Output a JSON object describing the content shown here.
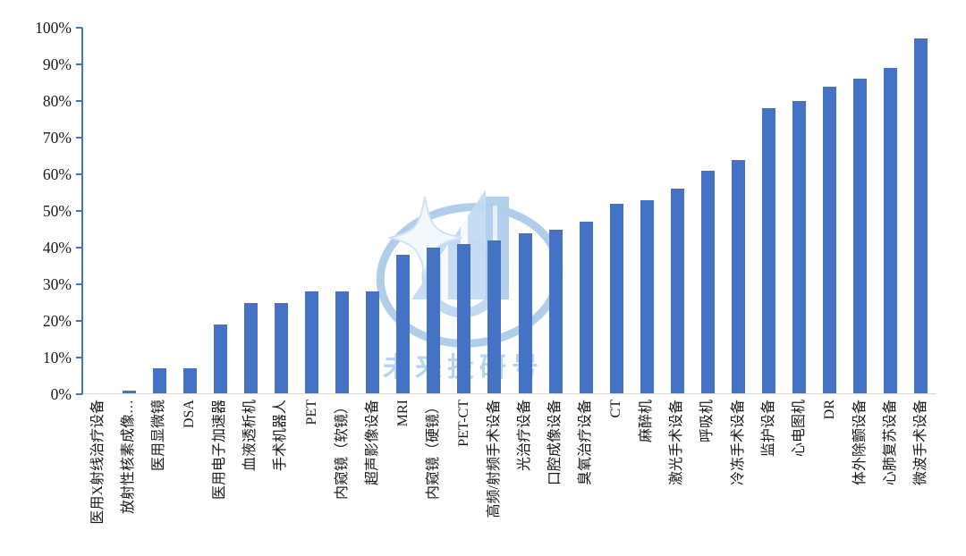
{
  "chart_data": {
    "type": "bar",
    "title": "",
    "xlabel": "",
    "ylabel": "",
    "categories": [
      "医用X射线治疗设备",
      "放射性核素成像…",
      "医用显微镜",
      "DSA",
      "医用电子加速器",
      "血液透析机",
      "手术机器人",
      "PET",
      "内窥镜（软镜）",
      "超声影像设备",
      "MRI",
      "内窥镜（硬镜）",
      "PET-CT",
      "高频/射频手术设备",
      "光治疗设备",
      "口腔成像设备",
      "臭氧治疗设备",
      "CT",
      "麻醉机",
      "激光手术设备",
      "呼吸机",
      "冷冻手术设备",
      "监护设备",
      "心电图机",
      "DR",
      "体外除颤设备",
      "心肺复苏设备",
      "微波手术设备"
    ],
    "values": [
      0,
      1,
      7,
      7,
      19,
      25,
      25,
      28,
      28,
      28,
      38,
      40,
      41,
      42,
      44,
      45,
      47,
      52,
      53,
      56,
      61,
      64,
      78,
      80,
      84,
      86,
      89,
      97
    ],
    "unit": "%",
    "ylim": [
      0,
      100
    ],
    "ytick_step": 10,
    "ytick_labels": [
      "0%",
      "10%",
      "20%",
      "30%",
      "40%",
      "50%",
      "60%",
      "70%",
      "80%",
      "90%",
      "100%"
    ],
    "grid": false,
    "legend_position": "none",
    "bar_color": "#4472C4",
    "axis_color": "#4472C4",
    "baseline_color": "#D9D9D9",
    "label_color": "#1a1a1a"
  },
  "watermark": {
    "text": "未来投研号",
    "text_color": "#9FC5E8",
    "logo_colors": {
      "ellipse": "#A7C9E8",
      "building": "#C3DAF1",
      "tower": "#AFCFEC",
      "ring": "#BCD5EE",
      "sparkle": "#F3F8FD"
    }
  }
}
